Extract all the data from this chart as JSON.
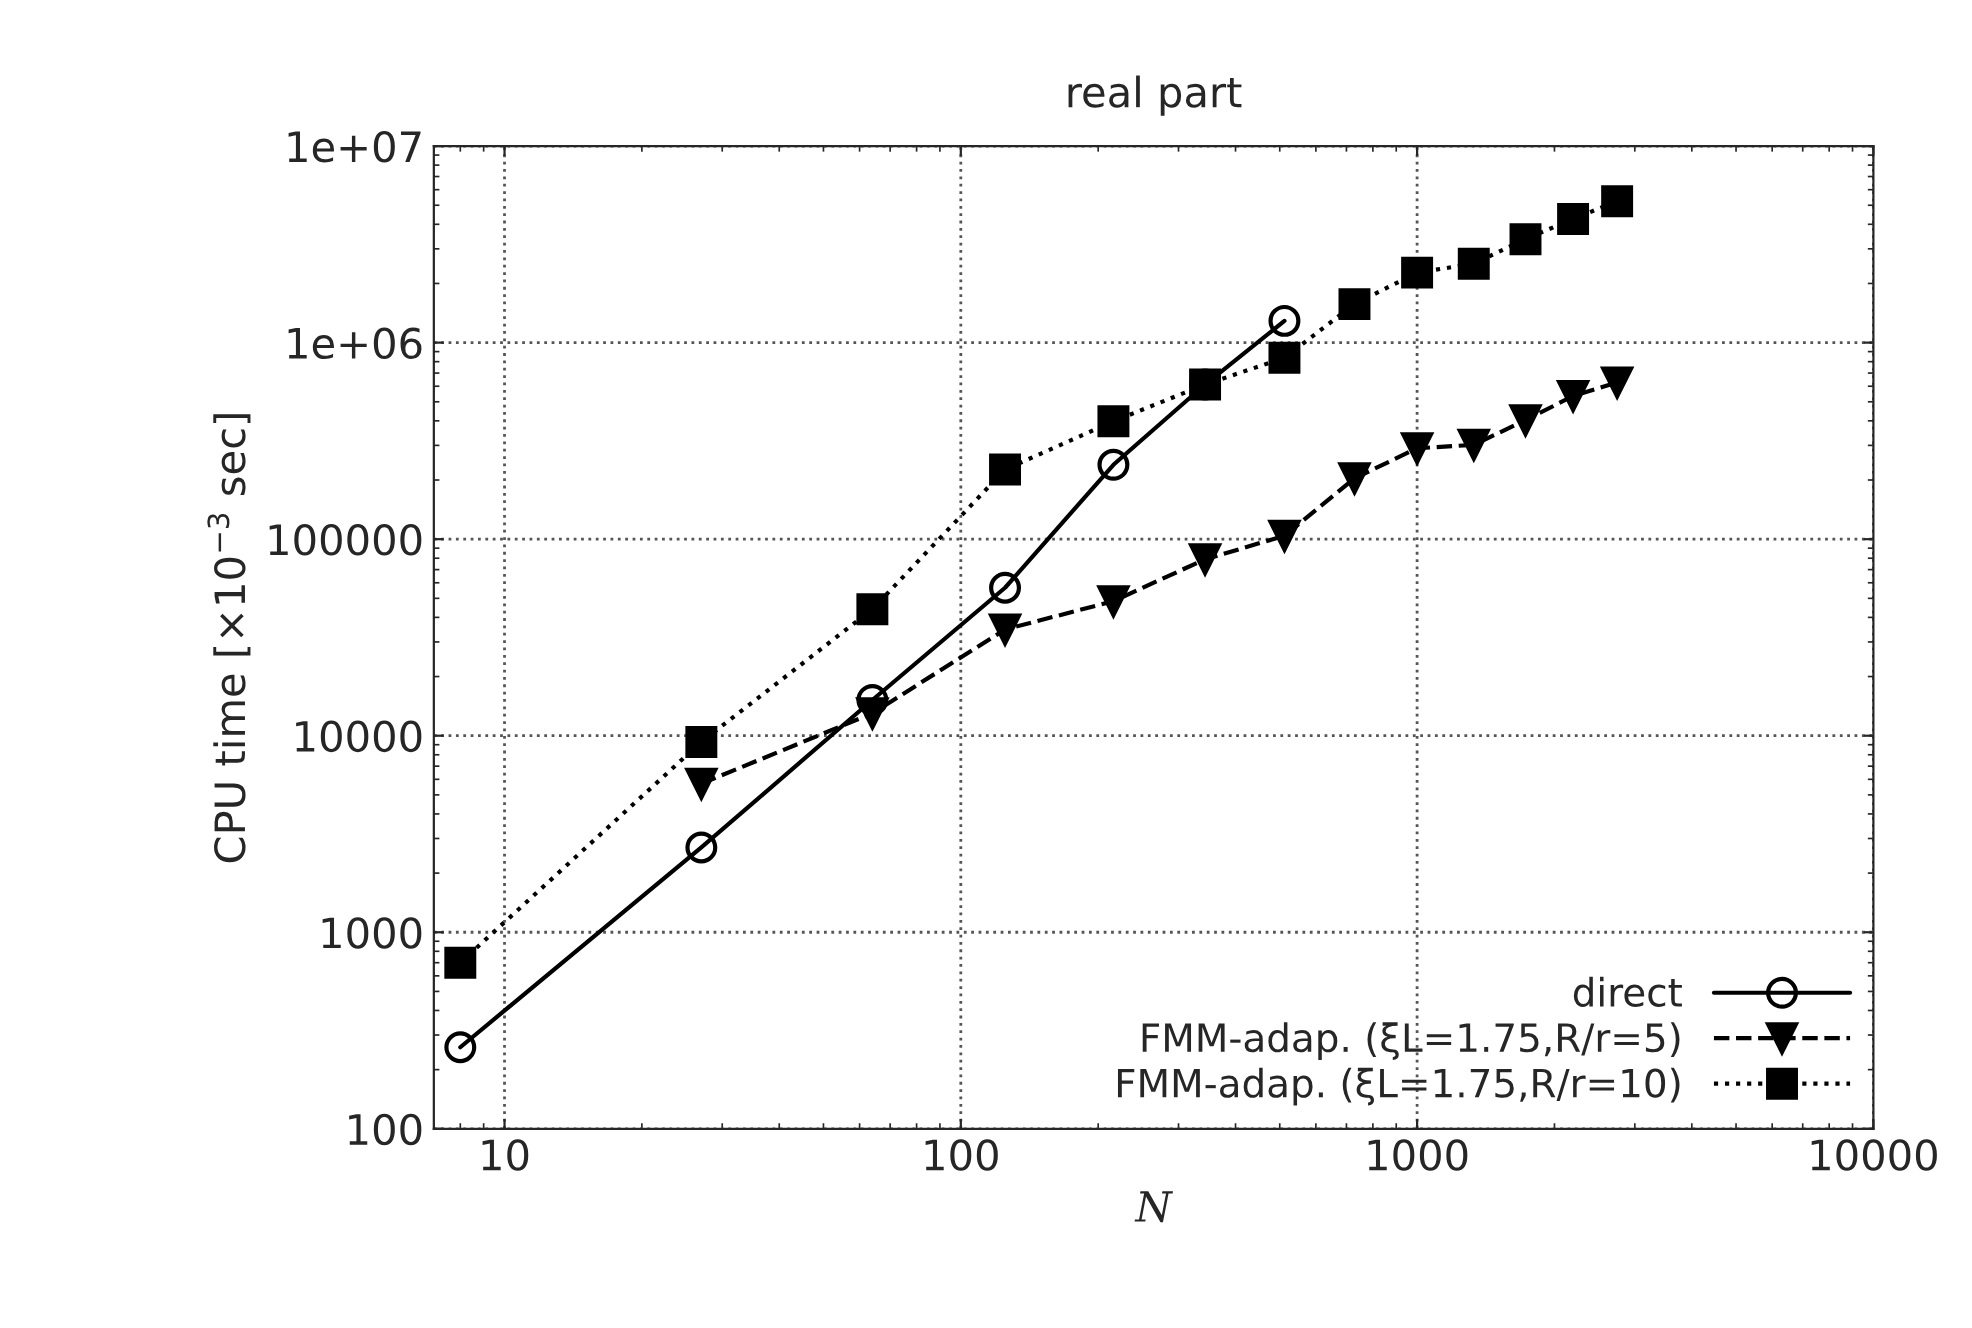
{
  "chart_data": {
    "type": "line",
    "title": "real part",
    "xlabel": "N",
    "ylabel": "CPU time [×10$^{−3}$ sec]",
    "log": "xy",
    "grid": true,
    "legend": "bottom right",
    "xlim": [
      7,
      10000
    ],
    "xticks": [
      10,
      100,
      1000,
      10000
    ],
    "ylim": [
      100,
      10000000
    ],
    "yticks": [
      {
        "value": 100,
        "label": "100"
      },
      {
        "value": 1000,
        "label": "1000"
      },
      {
        "value": 10000,
        "label": "10000"
      },
      {
        "value": 100000,
        "label": "100000"
      },
      {
        "value": 1000000,
        "label": "1e+06"
      },
      {
        "value": 10000000,
        "label": "1e+07"
      }
    ],
    "series": [
      {
        "name": "direct",
        "color": "#000000",
        "marker": "circle",
        "line_style": "solid",
        "x": [
          8,
          27,
          64,
          125,
          216,
          343,
          512
        ],
        "values": [
          260,
          2700,
          15200,
          56600,
          239000,
          612000,
          1290000
        ]
      },
      {
        "name": "FMM-adap. (ξL=1.75,R/r=5)",
        "color": "#000000",
        "marker": "triangle",
        "line_style": "dashed",
        "x": [
          27,
          64,
          125,
          216,
          343,
          512,
          729,
          1000,
          1331,
          1728,
          2197,
          2744
        ],
        "values": [
          5700,
          13000,
          34700,
          48400,
          79000,
          104000,
          204000,
          290000,
          302000,
          403000,
          535000,
          627000
        ]
      },
      {
        "name": "FMM-adap. (ξL=1.75,R/r=10)",
        "color": "#000000",
        "marker": "square",
        "line_style": "dotted",
        "x": [
          8,
          27,
          64,
          125,
          216,
          343,
          512,
          729,
          1000,
          1331,
          1728,
          2197,
          2744
        ],
        "values": [
          700,
          9300,
          44000,
          226000,
          398000,
          612000,
          837000,
          1570000,
          2270000,
          2520000,
          3360000,
          4260000,
          5240000
        ]
      }
    ]
  }
}
